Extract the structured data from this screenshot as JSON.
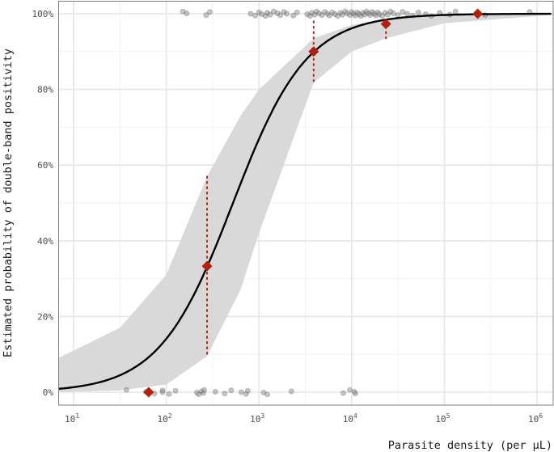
{
  "chart_data": {
    "type": "scatter",
    "subtype": "logistic-regression-fit-with-ci-ribbon",
    "title": "",
    "xlabel": "Parasite density (per µL)",
    "ylabel": "Estimated probability of double-band positivity",
    "x_scale": "log10",
    "xlim_log10": [
      0.834,
      6.17
    ],
    "ylim": [
      -0.035,
      1.035
    ],
    "x_ticks": [
      {
        "exp": 1,
        "base": "10",
        "sup": "1"
      },
      {
        "exp": 2,
        "base": "10",
        "sup": "2"
      },
      {
        "exp": 3,
        "base": "10",
        "sup": "3"
      },
      {
        "exp": 4,
        "base": "10",
        "sup": "4"
      },
      {
        "exp": 5,
        "base": "10",
        "sup": "5"
      },
      {
        "exp": 6,
        "base": "10",
        "sup": "6"
      }
    ],
    "y_ticks": [
      {
        "value": 0,
        "label": "0%"
      },
      {
        "value": 0.2,
        "label": "20%"
      },
      {
        "value": 0.4,
        "label": "40%"
      },
      {
        "value": 0.6,
        "label": "60%"
      },
      {
        "value": 0.8,
        "label": "80%"
      },
      {
        "value": 1.0,
        "label": "100%"
      }
    ],
    "grid": true,
    "legend": null,
    "fit_curve": {
      "model": "logistic on log10(density)",
      "midpoint_log10": 2.72,
      "slope_per_decade": 2.51,
      "color": "#000000"
    },
    "ci_ribbon": {
      "color": "#d9d9d9",
      "points": [
        {
          "log10x": 0.834,
          "lower": 0.0,
          "upper": 0.09
        },
        {
          "log10x": 1.5,
          "lower": 0.005,
          "upper": 0.17
        },
        {
          "log10x": 2.0,
          "lower": 0.02,
          "upper": 0.31
        },
        {
          "log10x": 2.44,
          "lower": 0.095,
          "upper": 0.57
        },
        {
          "log10x": 2.8,
          "lower": 0.27,
          "upper": 0.73
        },
        {
          "log10x": 3.0,
          "lower": 0.42,
          "upper": 0.8
        },
        {
          "log10x": 3.59,
          "lower": 0.818,
          "upper": 0.935
        },
        {
          "log10x": 4.0,
          "lower": 0.9,
          "upper": 0.97
        },
        {
          "log10x": 4.37,
          "lower": 0.935,
          "upper": 0.985
        },
        {
          "log10x": 5.0,
          "lower": 0.975,
          "upper": 0.995
        },
        {
          "log10x": 6.17,
          "lower": 0.997,
          "upper": 1.0
        }
      ]
    },
    "binned_estimates": {
      "color": "#b22010",
      "marker": "diamond",
      "points": [
        {
          "x": 65,
          "log10x": 1.81,
          "y": 0.0,
          "ci": null
        },
        {
          "x": 277,
          "log10x": 2.44,
          "y": 0.333,
          "ci": [
            0.095,
            0.57
          ]
        },
        {
          "x": 3900,
          "log10x": 3.59,
          "y": 0.9,
          "ci": [
            0.818,
            0.98
          ]
        },
        {
          "x": 23000,
          "log10x": 4.37,
          "y": 0.973,
          "ci": [
            0.935,
            0.98
          ]
        },
        {
          "x": 230000,
          "log10x": 5.36,
          "y": 1.0,
          "ci": null
        }
      ]
    },
    "observations": {
      "color": "#808080",
      "opacity": 0.45,
      "negative_y0": [
        1.57,
        1.78,
        1.87,
        1.96,
        1.96,
        2.03,
        2.1,
        2.33,
        2.35,
        2.38,
        2.4,
        2.41,
        2.53,
        2.63,
        2.7,
        2.81,
        2.86,
        2.88,
        3.05,
        3.09,
        3.35,
        3.91,
        3.98,
        4.03,
        4.04
      ],
      "positive_y1": [
        2.18,
        2.22,
        2.43,
        2.47,
        2.91,
        2.96,
        3.0,
        3.03,
        3.07,
        3.09,
        3.12,
        3.16,
        3.2,
        3.23,
        3.27,
        3.3,
        3.37,
        3.41,
        3.52,
        3.55,
        3.57,
        3.6,
        3.62,
        3.65,
        3.68,
        3.71,
        3.74,
        3.76,
        3.79,
        3.82,
        3.85,
        3.88,
        3.9,
        3.93,
        3.95,
        3.98,
        4.0,
        4.02,
        4.04,
        4.06,
        4.08,
        4.1,
        4.12,
        4.14,
        4.16,
        4.18,
        4.2,
        4.22,
        4.24,
        4.26,
        4.28,
        4.3,
        4.33,
        4.36,
        4.39,
        4.42,
        4.45,
        4.5,
        4.55,
        4.6,
        4.66,
        4.72,
        4.8,
        4.86,
        4.95,
        5.06,
        5.12,
        5.35,
        5.44,
        5.92
      ]
    }
  }
}
